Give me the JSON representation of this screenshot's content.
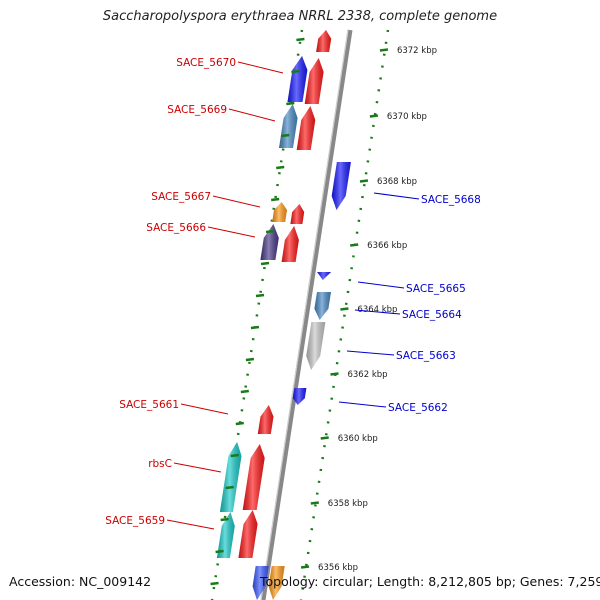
{
  "title": "Saccharopolyspora erythraea NRRL 2338, complete genome",
  "footer": {
    "accession": "Accession: NC_009142",
    "summary": "Topology: circular; Length: 8,212,805 bp; Genes: 7,259"
  },
  "colors": {
    "forward": "#ff1a1a",
    "reverse": "#1a1aff",
    "label_forward": "#cc0000",
    "label_reverse": "#0000cc",
    "backbone": "#888888",
    "tick": "#1a7a1a"
  },
  "scale_ticks": [
    {
      "kbp": 6372,
      "label": "6372 kbp"
    },
    {
      "kbp": 6370,
      "label": "6370 kbp"
    },
    {
      "kbp": 6368,
      "label": "6368 kbp"
    },
    {
      "kbp": 6366,
      "label": "6366 kbp"
    },
    {
      "kbp": 6364,
      "label": "6364 kbp"
    },
    {
      "kbp": 6362,
      "label": "6362 kbp"
    },
    {
      "kbp": 6360,
      "label": "6360 kbp"
    },
    {
      "kbp": 6358,
      "label": "6358 kbp"
    },
    {
      "kbp": 6356,
      "label": "6356 kbp"
    }
  ],
  "genes": [
    {
      "label": "SACE_5670",
      "strand": "+",
      "color": "#1a1aff"
    },
    {
      "label": "SACE_5669",
      "strand": "+",
      "color": "#4a8ac4"
    },
    {
      "label": "SACE_5668",
      "strand": "-",
      "color": "#1a1aff"
    },
    {
      "label": "SACE_5667",
      "strand": "+",
      "color": "#ff9a1a"
    },
    {
      "label": "SACE_5666",
      "strand": "+",
      "color": "#4a3a8a"
    },
    {
      "label": "SACE_5665",
      "strand": "-",
      "color": "#1a1aff"
    },
    {
      "label": "SACE_5664",
      "strand": "-",
      "color": "#4a8ac4"
    },
    {
      "label": "SACE_5663",
      "strand": "-",
      "color": "#c8c8c8"
    },
    {
      "label": "SACE_5662",
      "strand": "-",
      "color": "#1a1aff"
    },
    {
      "label": "SACE_5661",
      "strand": "+",
      "color": "#ff1a1a"
    },
    {
      "label": "rbsC",
      "strand": "+",
      "color": "#1acaca"
    },
    {
      "label": "SACE_5659",
      "strand": "+",
      "color": "#1acaca"
    }
  ]
}
